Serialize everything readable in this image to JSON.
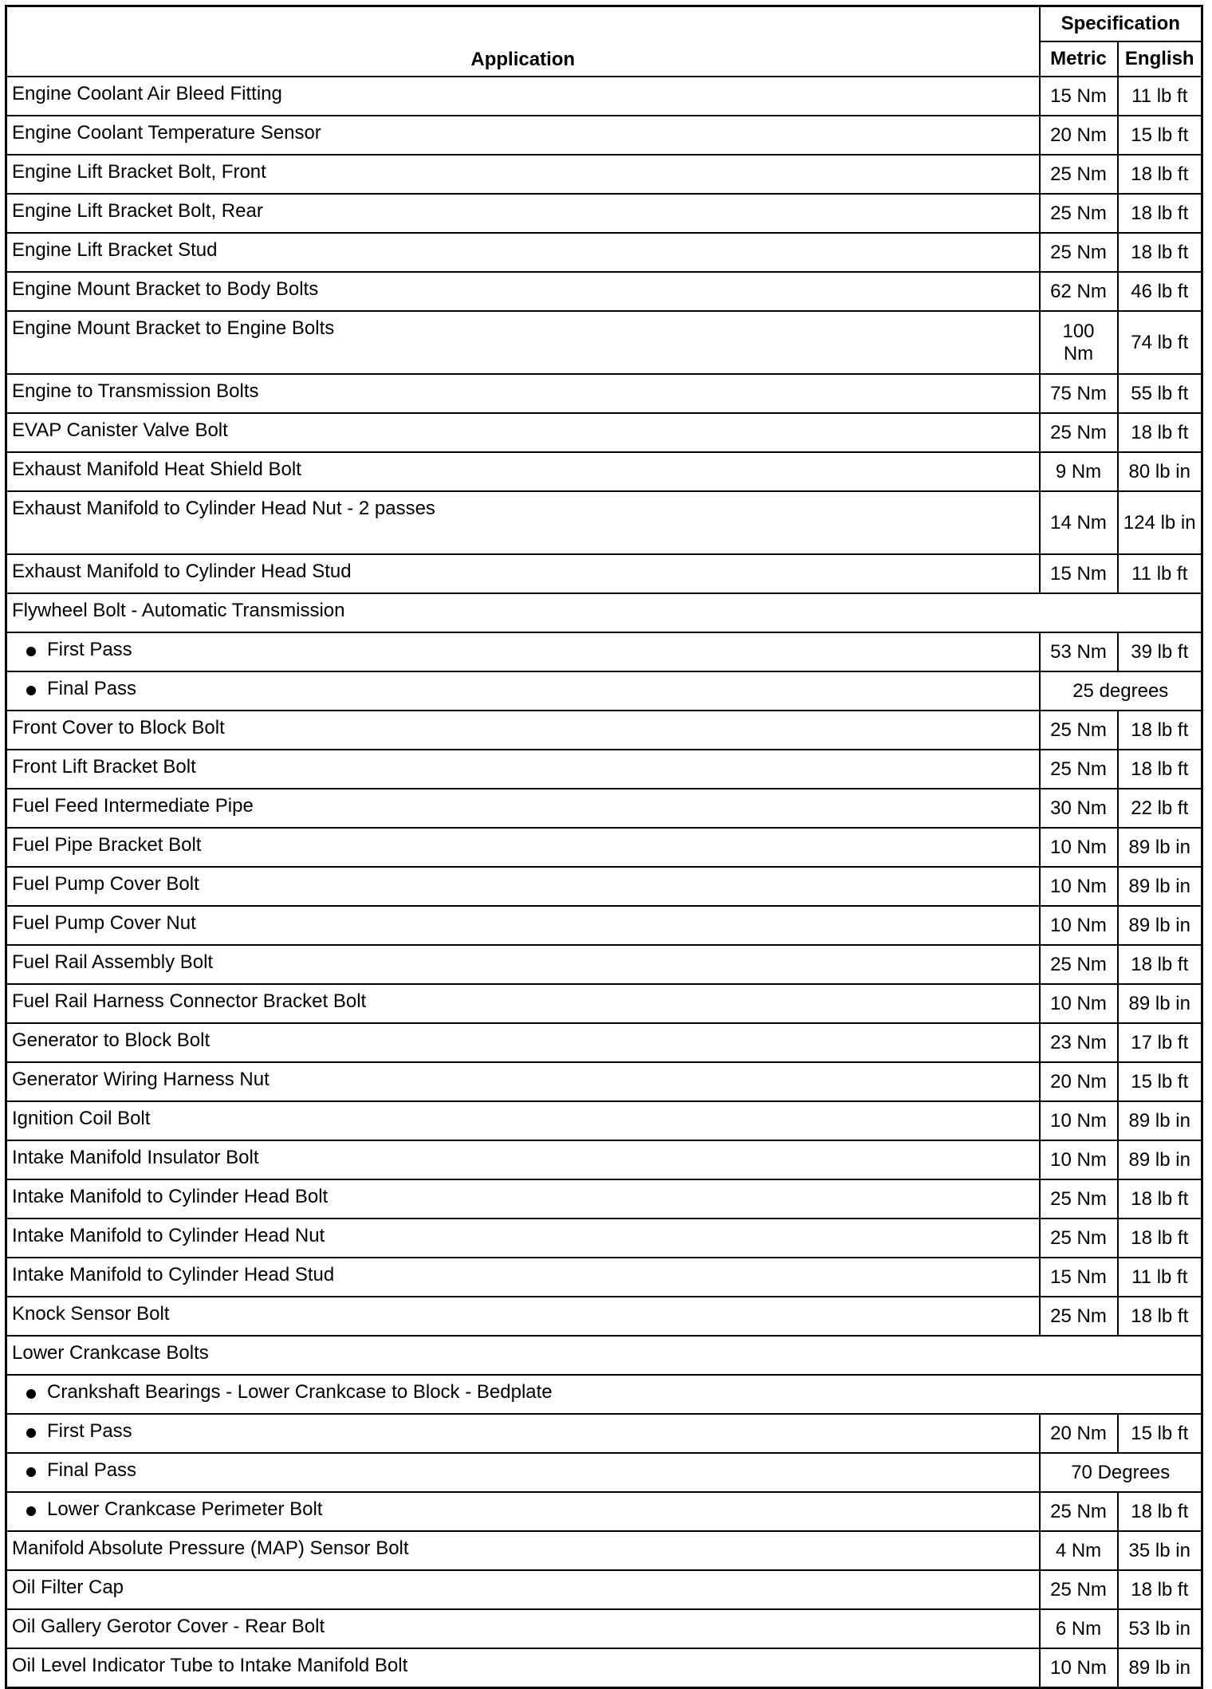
{
  "header": {
    "application": "Application",
    "specification": "Specification",
    "metric": "Metric",
    "english": "English"
  },
  "rows": [
    {
      "app": "Engine Coolant Air Bleed Fitting",
      "metric": "15 Nm",
      "english": "11 lb ft"
    },
    {
      "app": "Engine Coolant Temperature Sensor",
      "metric": "20 Nm",
      "english": "15 lb ft"
    },
    {
      "app": "Engine Lift Bracket Bolt, Front",
      "metric": "25 Nm",
      "english": "18 lb ft"
    },
    {
      "app": "Engine Lift Bracket Bolt, Rear",
      "metric": "25 Nm",
      "english": "18 lb ft"
    },
    {
      "app": "Engine Lift Bracket Stud",
      "metric": "25 Nm",
      "english": "18 lb ft"
    },
    {
      "app": "Engine Mount Bracket to Body Bolts",
      "metric": "62 Nm",
      "english": "46 lb ft"
    },
    {
      "app": "Engine Mount Bracket to Engine Bolts",
      "metric": "100 Nm",
      "english": "74 lb ft",
      "tall": true
    },
    {
      "app": "Engine to Transmission Bolts",
      "metric": "75 Nm",
      "english": "55 lb ft"
    },
    {
      "app": "EVAP Canister Valve Bolt",
      "metric": "25 Nm",
      "english": "18 lb ft"
    },
    {
      "app": "Exhaust Manifold Heat Shield Bolt",
      "metric": "9 Nm",
      "english": "80 lb in"
    },
    {
      "app": "Exhaust Manifold to Cylinder Head Nut - 2 passes",
      "metric": "14 Nm",
      "english": "124 lb in",
      "tall": true
    },
    {
      "app": "Exhaust Manifold to Cylinder Head Stud",
      "metric": "15 Nm",
      "english": "11 lb ft"
    },
    {
      "app": "Flywheel Bolt - Automatic Transmission"
    },
    {
      "app": "First Pass",
      "metric": "53 Nm",
      "english": "39 lb ft",
      "bullet": true
    },
    {
      "app": "Final Pass",
      "span": "25 degrees",
      "bullet": true
    },
    {
      "app": "Front Cover to Block Bolt",
      "metric": "25 Nm",
      "english": "18 lb ft"
    },
    {
      "app": "Front Lift Bracket Bolt",
      "metric": "25 Nm",
      "english": "18 lb ft"
    },
    {
      "app": "Fuel Feed Intermediate Pipe",
      "metric": "30 Nm",
      "english": "22 lb ft"
    },
    {
      "app": "Fuel Pipe Bracket Bolt",
      "metric": "10 Nm",
      "english": "89 lb in"
    },
    {
      "app": "Fuel Pump Cover Bolt",
      "metric": "10 Nm",
      "english": "89 lb in"
    },
    {
      "app": "Fuel Pump Cover Nut",
      "metric": "10 Nm",
      "english": "89 lb in"
    },
    {
      "app": "Fuel Rail Assembly Bolt",
      "metric": "25 Nm",
      "english": "18 lb ft"
    },
    {
      "app": "Fuel Rail Harness Connector Bracket Bolt",
      "metric": "10 Nm",
      "english": "89 lb in"
    },
    {
      "app": "Generator to Block Bolt",
      "metric": "23 Nm",
      "english": "17 lb ft"
    },
    {
      "app": "Generator Wiring Harness Nut",
      "metric": "20 Nm",
      "english": "15 lb ft"
    },
    {
      "app": "Ignition Coil Bolt",
      "metric": "10 Nm",
      "english": "89 lb in"
    },
    {
      "app": "Intake Manifold Insulator Bolt",
      "metric": "10 Nm",
      "english": "89 lb in"
    },
    {
      "app": "Intake Manifold to Cylinder Head Bolt",
      "metric": "25 Nm",
      "english": "18 lb ft"
    },
    {
      "app": "Intake Manifold to Cylinder Head Nut",
      "metric": "25 Nm",
      "english": "18 lb ft"
    },
    {
      "app": "Intake Manifold to Cylinder Head Stud",
      "metric": "15 Nm",
      "english": "11 lb ft"
    },
    {
      "app": "Knock Sensor Bolt",
      "metric": "25 Nm",
      "english": "18 lb ft"
    },
    {
      "app": "Lower Crankcase Bolts"
    },
    {
      "app": "Crankshaft Bearings - Lower Crankcase to Block - Bedplate",
      "bullet": true
    },
    {
      "app": "First Pass",
      "metric": "20 Nm",
      "english": "15 lb ft",
      "bullet": true
    },
    {
      "app": "Final Pass",
      "span": "70 Degrees",
      "bullet": true
    },
    {
      "app": "Lower Crankcase Perimeter Bolt",
      "metric": "25 Nm",
      "english": "18 lb ft",
      "bullet": true
    },
    {
      "app": "Manifold Absolute Pressure (MAP) Sensor Bolt",
      "metric": "4 Nm",
      "english": "35 lb in"
    },
    {
      "app": "Oil Filter Cap",
      "metric": "25 Nm",
      "english": "18 lb ft"
    },
    {
      "app": "Oil Gallery Gerotor Cover - Rear Bolt",
      "metric": "6 Nm",
      "english": "53 lb in"
    },
    {
      "app": "Oil Level Indicator Tube to Intake Manifold Bolt",
      "metric": "10 Nm",
      "english": "89 lb in"
    }
  ]
}
